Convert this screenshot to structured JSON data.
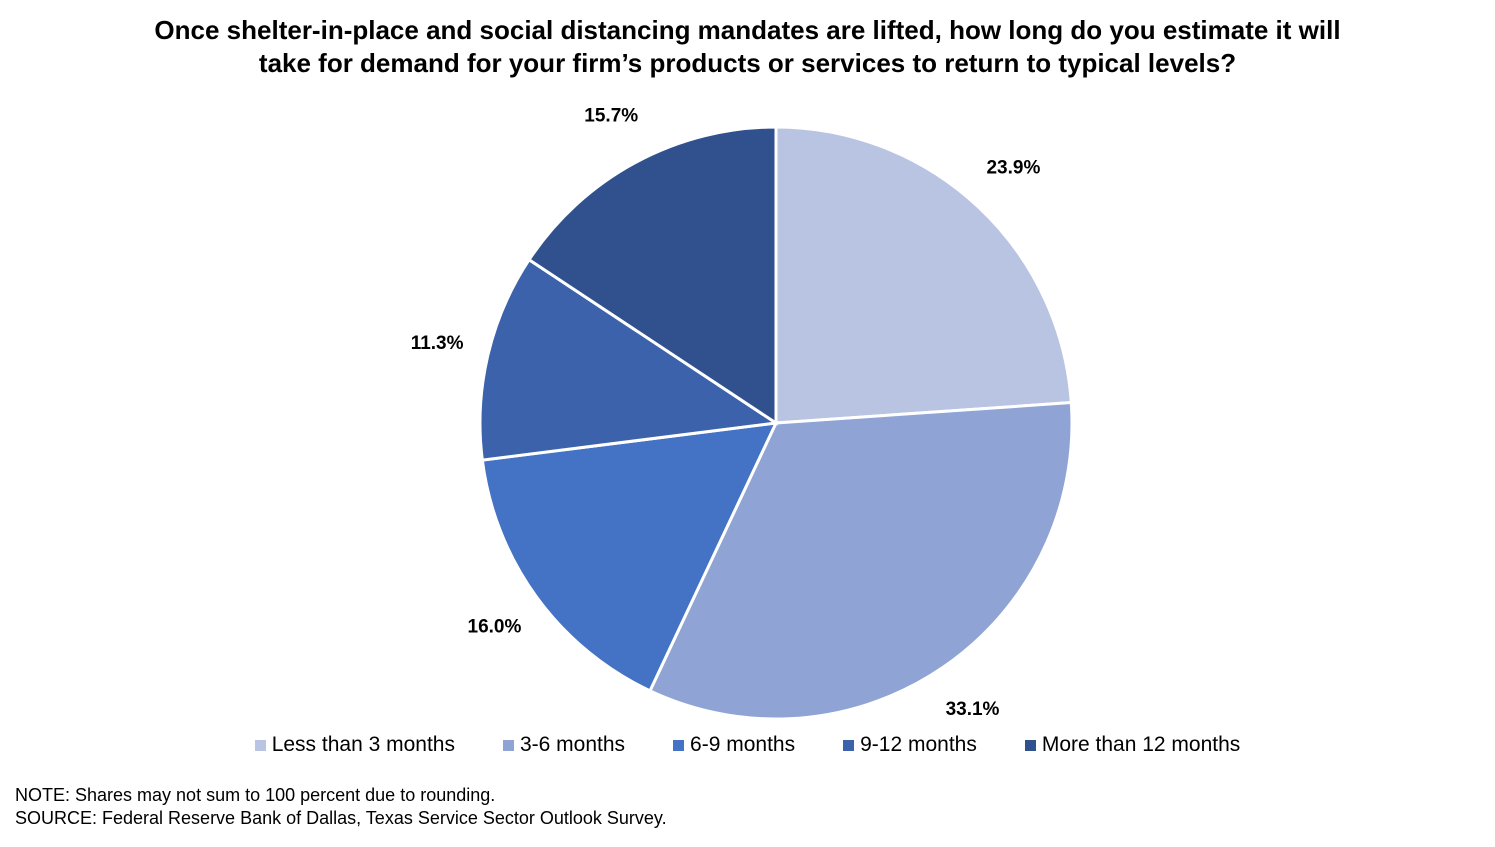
{
  "chart_data": {
    "type": "pie",
    "title_lines": [
      "Once shelter-in-place and social distancing mandates are lifted, how long do you estimate it will",
      "take for demand for your firm’s products or services to return to typical levels?"
    ],
    "slices": [
      {
        "name": "Less than 3 months",
        "value": 23.9,
        "label": "23.9%",
        "color": "#b9c3e2"
      },
      {
        "name": "3-6 months",
        "value": 33.1,
        "label": "33.1%",
        "color": "#8fa3d4"
      },
      {
        "name": "6-9 months",
        "value": 16.0,
        "label": "16.0%",
        "color": "#4472c4"
      },
      {
        "name": "9-12 months",
        "value": 11.3,
        "label": "11.3%",
        "color": "#3b62ab"
      },
      {
        "name": "More than 12 months",
        "value": 15.7,
        "label": "15.7%",
        "color": "#30518d"
      }
    ],
    "start_angle": "12 o'clock",
    "direction": "clockwise",
    "legend_position": "bottom"
  },
  "notes": {
    "note": "NOTE: Shares may not sum to 100 percent due to rounding.",
    "source": "SOURCE: Federal Reserve Bank of Dallas, Texas Service Sector Outlook Survey."
  }
}
